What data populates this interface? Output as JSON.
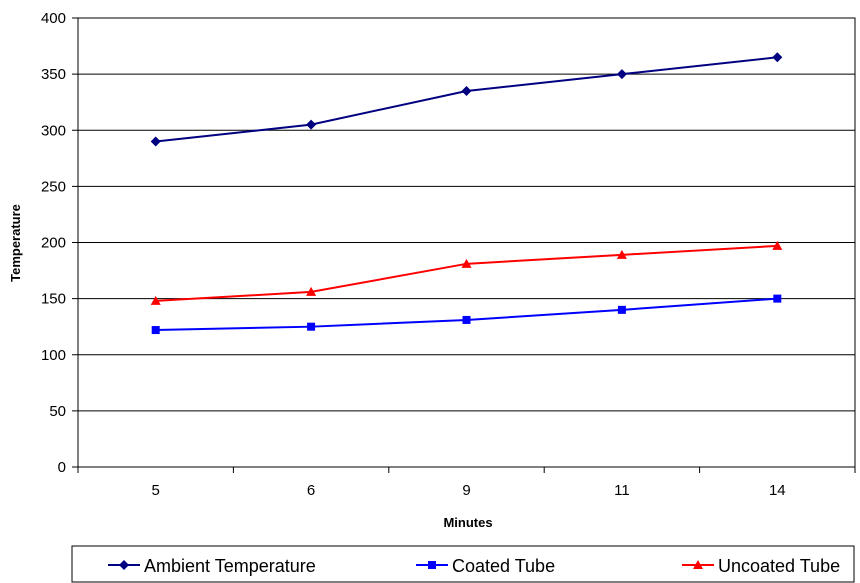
{
  "chart_data": {
    "type": "line",
    "title": "",
    "xlabel": "Minutes",
    "ylabel": "Temperature",
    "categories": [
      "5",
      "6",
      "9",
      "11",
      "14"
    ],
    "ylim": [
      0,
      400
    ],
    "yticks": [
      "0",
      "50",
      "100",
      "150",
      "200",
      "250",
      "300",
      "350",
      "400"
    ],
    "grid": true,
    "legend_position": "bottom",
    "series": [
      {
        "name": "Ambient Temperature",
        "values": [
          290,
          305,
          335,
          350,
          365
        ],
        "color": "#000080",
        "marker": "diamond"
      },
      {
        "name": "Coated Tube",
        "values": [
          122,
          125,
          131,
          140,
          150
        ],
        "color": "#0000FF",
        "marker": "square"
      },
      {
        "name": "Uncoated Tube",
        "values": [
          148,
          156,
          181,
          189,
          197
        ],
        "color": "#FF0000",
        "marker": "triangle"
      }
    ]
  }
}
